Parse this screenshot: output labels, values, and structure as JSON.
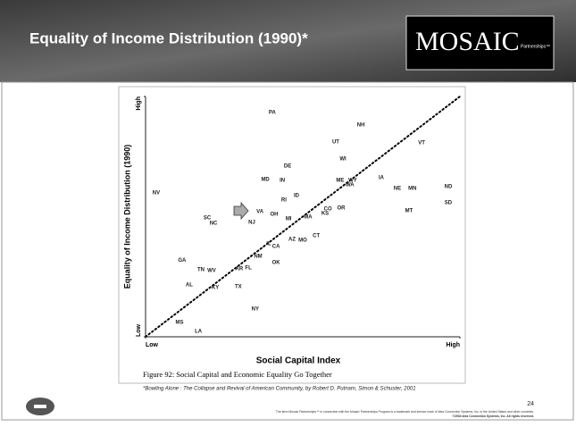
{
  "header": {
    "title": "Equality of Income Distribution (1990)*",
    "logo": "MOSAIC",
    "logo_sub": "Partnerships™"
  },
  "chart_data": {
    "type": "scatter",
    "xlabel": "Social Capital Index",
    "ylabel": "Equality of Income Distribution (1990)",
    "caption": "Figure 92: Social Capital and Economic Equality Go Together",
    "xlim": [
      0,
      100
    ],
    "ylim": [
      0,
      100
    ],
    "xticks": [
      {
        "value": 0,
        "label": "Low"
      },
      {
        "value": 100,
        "label": "High"
      }
    ],
    "yticks": [
      {
        "value": 0,
        "label": "Low"
      },
      {
        "value": 100,
        "label": "High"
      }
    ],
    "points": [
      {
        "label": "PA",
        "x": 40.3,
        "y": 93.3
      },
      {
        "label": "NH",
        "x": 68.5,
        "y": 88.1
      },
      {
        "label": "UT",
        "x": 60.5,
        "y": 81.0
      },
      {
        "label": "VT",
        "x": 87.8,
        "y": 80.7
      },
      {
        "label": "WI",
        "x": 62.8,
        "y": 74.0
      },
      {
        "label": "DE",
        "x": 45.2,
        "y": 71.0
      },
      {
        "label": "ME",
        "x": 61.9,
        "y": 65.1
      },
      {
        "label": "WY",
        "x": 65.9,
        "y": 65.1
      },
      {
        "label": "MD",
        "x": 38.1,
        "y": 65.4
      },
      {
        "label": "IN",
        "x": 43.5,
        "y": 65.1
      },
      {
        "label": "IA",
        "x": 75.0,
        "y": 66.2
      },
      {
        "label": "WA",
        "x": 65.0,
        "y": 63.2
      },
      {
        "label": "ND",
        "x": 96.3,
        "y": 62.5
      },
      {
        "label": "NE",
        "x": 80.1,
        "y": 61.7
      },
      {
        "label": "MN",
        "x": 84.9,
        "y": 61.7
      },
      {
        "label": "NV",
        "x": 3.4,
        "y": 59.9
      },
      {
        "label": "ID",
        "x": 48.0,
        "y": 58.7
      },
      {
        "label": "RI",
        "x": 44.0,
        "y": 56.9
      },
      {
        "label": "SD",
        "x": 96.3,
        "y": 55.8
      },
      {
        "label": "OR",
        "x": 62.2,
        "y": 53.5
      },
      {
        "label": "CO",
        "x": 58.0,
        "y": 53.2
      },
      {
        "label": "MT",
        "x": 83.8,
        "y": 52.4
      },
      {
        "label": "VA",
        "x": 36.4,
        "y": 52.0
      },
      {
        "label": "OH",
        "x": 40.9,
        "y": 50.9
      },
      {
        "label": "KS",
        "x": 57.1,
        "y": 51.3
      },
      {
        "label": "SC",
        "x": 19.6,
        "y": 49.4
      },
      {
        "label": "NC",
        "x": 21.6,
        "y": 47.2
      },
      {
        "label": "MI",
        "x": 45.5,
        "y": 49.1
      },
      {
        "label": "MA",
        "x": 51.7,
        "y": 49.8
      },
      {
        "label": "NJ",
        "x": 33.8,
        "y": 47.6
      },
      {
        "label": "CT",
        "x": 54.3,
        "y": 42.0
      },
      {
        "label": "AZ",
        "x": 46.6,
        "y": 40.5
      },
      {
        "label": "MO",
        "x": 50.0,
        "y": 40.1
      },
      {
        "label": "IL",
        "x": 39.2,
        "y": 38.7
      },
      {
        "label": "CA",
        "x": 41.5,
        "y": 37.5
      },
      {
        "label": "NM",
        "x": 35.8,
        "y": 33.5
      },
      {
        "label": "GA",
        "x": 11.6,
        "y": 31.9
      },
      {
        "label": "OK",
        "x": 41.5,
        "y": 30.9
      },
      {
        "label": "AR",
        "x": 29.8,
        "y": 28.3
      },
      {
        "label": "FL",
        "x": 32.7,
        "y": 28.6
      },
      {
        "label": "TN",
        "x": 17.6,
        "y": 27.9
      },
      {
        "label": "WV",
        "x": 21.0,
        "y": 27.5
      },
      {
        "label": "AL",
        "x": 13.9,
        "y": 21.6
      },
      {
        "label": "KY",
        "x": 22.2,
        "y": 20.4
      },
      {
        "label": "TX",
        "x": 29.5,
        "y": 20.8
      },
      {
        "label": "NY",
        "x": 34.9,
        "y": 11.5
      },
      {
        "label": "MS",
        "x": 10.8,
        "y": 5.9
      },
      {
        "label": "LA",
        "x": 16.8,
        "y": 2.2
      }
    ]
  },
  "footnote": "*Bowling Alone : The Collapse and Revival of American Community, by Robert D. Putnam, Simon & Schuster, 2001",
  "page_number": "24",
  "footer": [
    "The term Mosaic Partnerships™ in connection with the Mosaic Partnerships Program is a trademark and service mark of Idea Connection Systems, Inc. in the United States and other countries.",
    "©2004 Idea Connection Systems, Inc. All rights reserved."
  ]
}
